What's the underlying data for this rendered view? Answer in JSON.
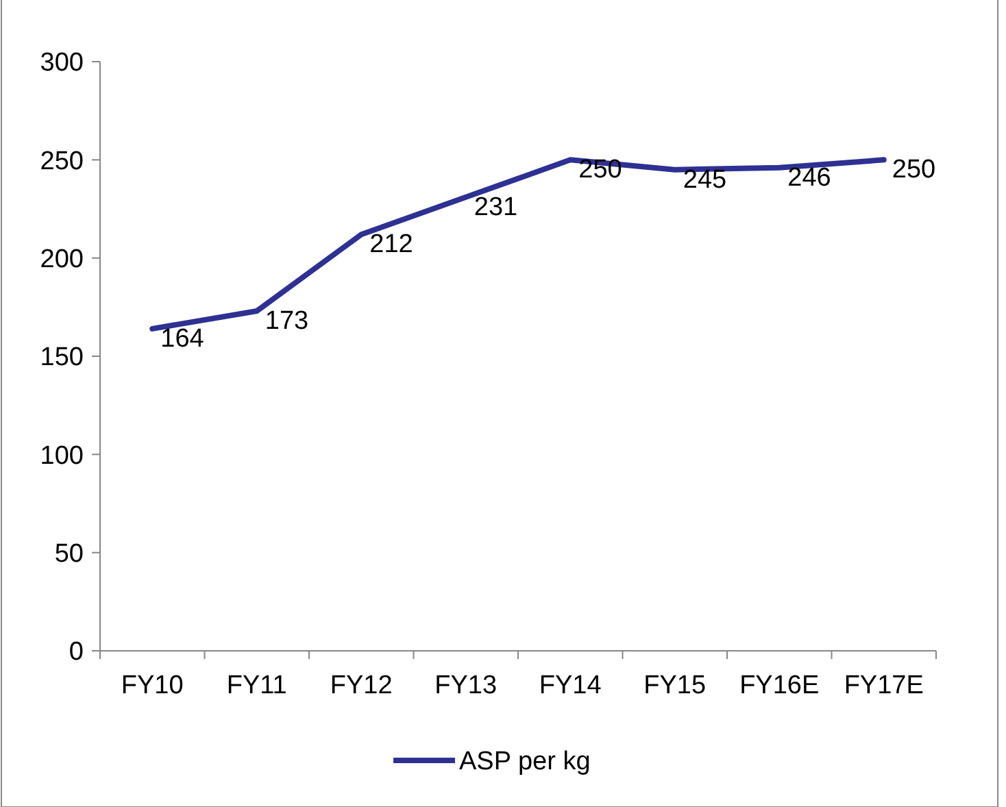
{
  "chart_data": {
    "type": "line",
    "categories": [
      "FY10",
      "FY11",
      "FY12",
      "FY13",
      "FY14",
      "FY15",
      "FY16E",
      "FY17E"
    ],
    "series": [
      {
        "name": "ASP per kg",
        "color": "#2e3192",
        "values": [
          164,
          173,
          212,
          231,
          250,
          245,
          246,
          250
        ]
      }
    ],
    "ylim": [
      0,
      300
    ],
    "yticks": [
      0,
      50,
      100,
      150,
      200,
      250,
      300
    ],
    "grid": false,
    "legend": "bottom",
    "data_labels": true,
    "marker": "none",
    "line_style": "solid"
  }
}
